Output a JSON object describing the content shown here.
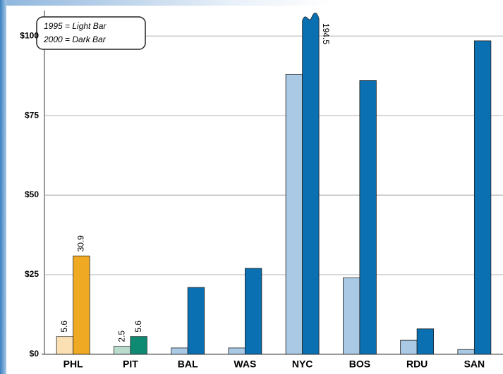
{
  "chart_data": {
    "type": "bar",
    "categories": [
      "PHL",
      "PIT",
      "BAL",
      "WAS",
      "NYC",
      "BOS",
      "RDU",
      "SAN"
    ],
    "legend": [
      "1995 = Light Bar",
      "2000 = Dark Bar"
    ],
    "series": [
      {
        "colors": [
          "#fbe0b4",
          "#b9dccd",
          "#a9c9e5",
          "#a9c9e5",
          "#a9c9e5",
          "#a9c9e5",
          "#a9c9e5",
          "#a9c9e5"
        ],
        "values": [
          5.6,
          2.5,
          2,
          2,
          88,
          24,
          4.4,
          1.5
        ],
        "value_labels": [
          "5.6",
          "2.5",
          null,
          null,
          null,
          null,
          null,
          null
        ]
      },
      {
        "colors": [
          "#f0a922",
          "#0e8a72",
          "#0a70b2",
          "#0a70b2",
          "#0a70b2",
          "#0a70b2",
          "#0a70b2",
          "#0a70b2"
        ],
        "values": [
          30.9,
          5.6,
          21,
          27,
          194.5,
          86,
          8,
          98.5
        ],
        "value_labels": [
          "30.9",
          "5.6",
          null,
          null,
          "194.5",
          null,
          null,
          null
        ]
      }
    ],
    "ylim": [
      0,
      108
    ],
    "yticks": [
      {
        "value": 0,
        "label": "$0"
      },
      {
        "value": 25,
        "label": "$25"
      },
      {
        "value": 50,
        "label": "$50"
      },
      {
        "value": 75,
        "label": "$75"
      },
      {
        "value": 100,
        "label": "$100"
      }
    ],
    "grid": true
  }
}
